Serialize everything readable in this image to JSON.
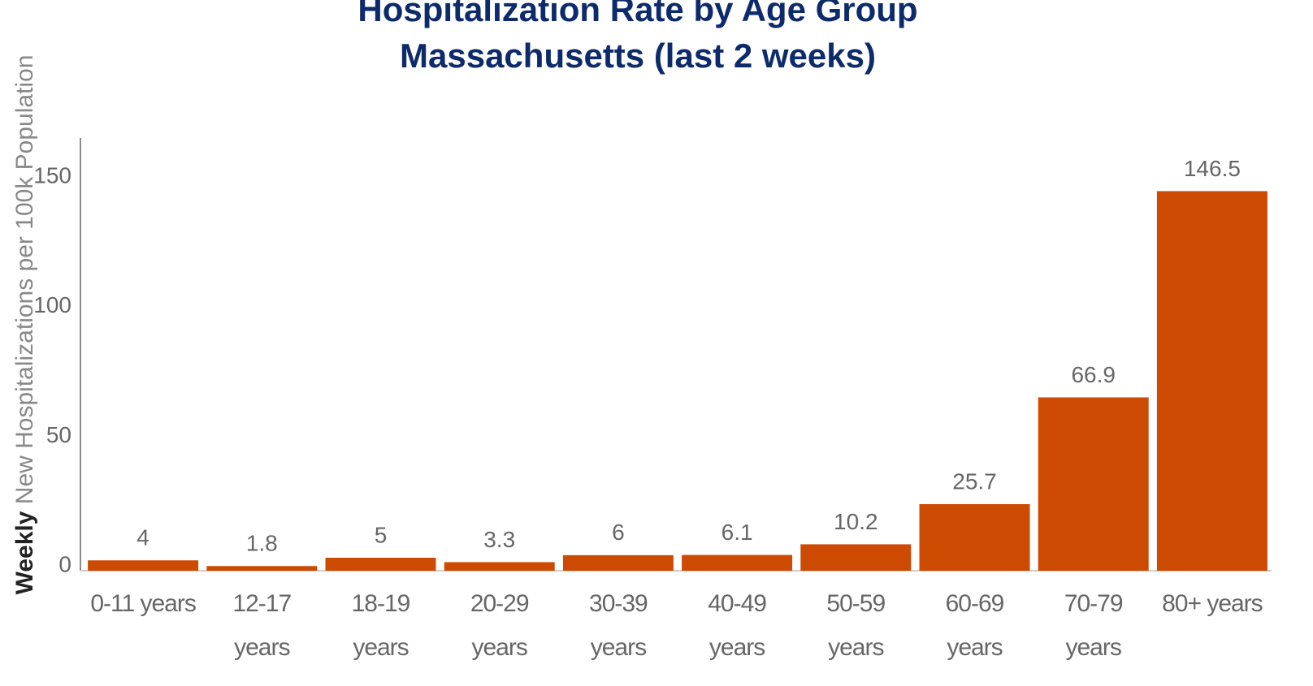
{
  "chart_data": {
    "type": "bar",
    "title": [
      "Hospitalization Rate by Age Group",
      "Massachusetts (last 2 weeks)"
    ],
    "y_label_bold": "Weekly",
    "y_label": "New Hospitalizations per 100k Population",
    "categories": [
      "0-11 years",
      "12-17 years",
      "18-19 years",
      "20-29 years",
      "30-39 years",
      "40-49 years",
      "50-59 years",
      "60-69 years",
      "70-79 years",
      "80+ years"
    ],
    "values": [
      4,
      1.8,
      5,
      3.3,
      6,
      6.1,
      10.2,
      25.7,
      66.9,
      146.5
    ],
    "color": "#cc4a02",
    "ylim": [
      0,
      167
    ],
    "yticks": [
      0,
      50,
      100,
      150
    ],
    "grid": false
  }
}
